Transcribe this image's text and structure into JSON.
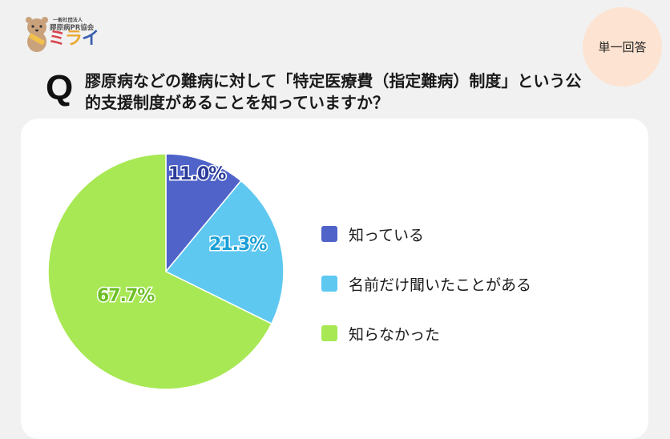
{
  "logo": {
    "org_small": "一般社団法人",
    "org": "膠原病PR協会",
    "name_chars": [
      "ミ",
      "ラ",
      "イ"
    ],
    "mascot": "quokka-mascot-icon"
  },
  "badge": {
    "label": "単一回答"
  },
  "question": {
    "prefix": "Q",
    "text": "膠原病などの難病に対して「特定医療費（指定難病）制度」という公的支援制度があることを知っていますか？"
  },
  "chart_data": {
    "type": "pie",
    "title": "膠原病などの難病に対して「特定医療費（指定難病）制度」という公的支援制度があることを知っていますか？",
    "categories": [
      "知っている",
      "名前だけ聞いたことがある",
      "知らなかった"
    ],
    "values": [
      11.0,
      21.3,
      67.7
    ],
    "labels": [
      "11.0%",
      "21.3%",
      "67.7%"
    ],
    "colors": [
      "#4f63c9",
      "#5ec8f0",
      "#a8e854"
    ],
    "label_colors": [
      "#2b3c9a",
      "#1a9ed6",
      "#6cbf24"
    ],
    "start_angle": "12 o'clock, clockwise",
    "legend_position": "right"
  }
}
